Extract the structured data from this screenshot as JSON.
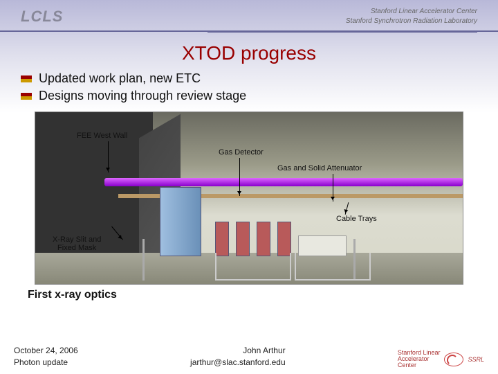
{
  "header": {
    "logo_left": "LCLS",
    "logo_right_line1": "Stanford Linear Accelerator Center",
    "logo_right_line2": "Stanford Synchrotron Radiation Laboratory"
  },
  "title": "XTOD progress",
  "bullets": [
    "Updated work plan, new ETC",
    "Designs moving through review stage"
  ],
  "figure": {
    "callouts": {
      "fee_west_wall": "FEE West Wall",
      "gas_detector": "Gas Detector",
      "gas_solid_attenuator": "Gas and Solid Attenuator",
      "cable_trays": "Cable Trays",
      "xray_slit_line1": "X-Ray Slit and",
      "xray_slit_line2": "Fixed Mask"
    },
    "colors": {
      "beamline": "#aa44ee",
      "wall": "#323232",
      "equipment_blue": "#7aa0c8",
      "equipment_red": "#b85a5a",
      "floor": "#989888",
      "background_top": "#6a6a60",
      "cabletray": "#bb9966"
    }
  },
  "subtitle": "First x-ray optics",
  "footer": {
    "date": "October 24, 2006",
    "event": "Photon update",
    "author": "John Arthur",
    "email": "jarthur@slac.stanford.edu",
    "affil_line1": "Stanford Linear",
    "affil_line2": "Accelerator",
    "affil_line3": "Center",
    "ssrl": "SSRL"
  },
  "colors": {
    "title_color": "#990000",
    "bullet_top": "#990000",
    "bullet_bottom": "#cc9900",
    "header_rule": "#666699"
  }
}
